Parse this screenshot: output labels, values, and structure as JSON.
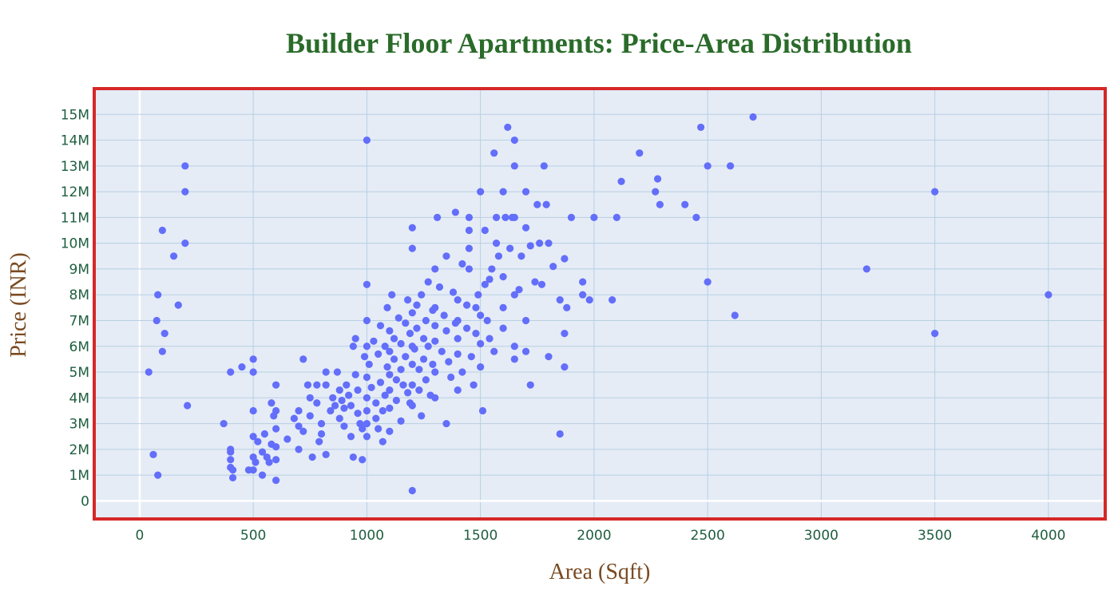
{
  "colors": {
    "title": "#2a6b2a",
    "axis_title": "#7a4a22",
    "tick": "#1f5f3f",
    "plot_bg": "#e5ecf6",
    "grid": "#b9cfe2",
    "zero_line": "#ffffff",
    "frame": "#d62728",
    "marker": "#636efa"
  },
  "chart_data": {
    "type": "scatter",
    "title": "Builder Floor Apartments: Price-Area Distribution",
    "xlabel": "Area (Sqft)",
    "ylabel": "Price (INR)",
    "xlim": [
      -200,
      4250
    ],
    "ylim": [
      -700000,
      16000000
    ],
    "x_ticks": [
      0,
      500,
      1000,
      1500,
      2000,
      2500,
      3000,
      3500,
      4000
    ],
    "x_tick_labels": [
      "0",
      "500",
      "1000",
      "1500",
      "2000",
      "2500",
      "3000",
      "3500",
      "4000"
    ],
    "y_ticks": [
      0,
      1000000,
      2000000,
      3000000,
      4000000,
      5000000,
      6000000,
      7000000,
      8000000,
      9000000,
      10000000,
      11000000,
      12000000,
      13000000,
      14000000,
      15000000
    ],
    "y_tick_labels": [
      "0",
      "1M",
      "2M",
      "3M",
      "4M",
      "5M",
      "6M",
      "7M",
      "8M",
      "9M",
      "10M",
      "11M",
      "12M",
      "13M",
      "14M",
      "15M"
    ],
    "grid": true,
    "points": [
      [
        40,
        5000000
      ],
      [
        60,
        1800000
      ],
      [
        75,
        7000000
      ],
      [
        80,
        8000000
      ],
      [
        80,
        1000000
      ],
      [
        100,
        5800000
      ],
      [
        100,
        10500000
      ],
      [
        110,
        6500000
      ],
      [
        150,
        9500000
      ],
      [
        170,
        7600000
      ],
      [
        200,
        12000000
      ],
      [
        200,
        13000000
      ],
      [
        200,
        10000000
      ],
      [
        210,
        3700000
      ],
      [
        370,
        3000000
      ],
      [
        400,
        5000000
      ],
      [
        400,
        2000000
      ],
      [
        400,
        1900000
      ],
      [
        400,
        1600000
      ],
      [
        400,
        1300000
      ],
      [
        410,
        1200000
      ],
      [
        410,
        900000
      ],
      [
        450,
        5200000
      ],
      [
        480,
        1200000
      ],
      [
        500,
        5500000
      ],
      [
        500,
        5000000
      ],
      [
        500,
        3500000
      ],
      [
        500,
        2500000
      ],
      [
        500,
        1700000
      ],
      [
        500,
        1200000
      ],
      [
        510,
        1500000
      ],
      [
        520,
        2300000
      ],
      [
        540,
        1900000
      ],
      [
        540,
        1000000
      ],
      [
        550,
        2600000
      ],
      [
        560,
        1700000
      ],
      [
        570,
        1500000
      ],
      [
        580,
        3800000
      ],
      [
        580,
        2200000
      ],
      [
        590,
        3300000
      ],
      [
        600,
        4500000
      ],
      [
        600,
        3500000
      ],
      [
        600,
        2800000
      ],
      [
        600,
        2100000
      ],
      [
        600,
        1600000
      ],
      [
        600,
        800000
      ],
      [
        650,
        2400000
      ],
      [
        680,
        3200000
      ],
      [
        700,
        3500000
      ],
      [
        700,
        2900000
      ],
      [
        700,
        2000000
      ],
      [
        720,
        5500000
      ],
      [
        720,
        2700000
      ],
      [
        740,
        4500000
      ],
      [
        750,
        4000000
      ],
      [
        750,
        3300000
      ],
      [
        760,
        1700000
      ],
      [
        780,
        4500000
      ],
      [
        780,
        3800000
      ],
      [
        790,
        2300000
      ],
      [
        800,
        3000000
      ],
      [
        800,
        2600000
      ],
      [
        820,
        5000000
      ],
      [
        820,
        4500000
      ],
      [
        820,
        1800000
      ],
      [
        840,
        3500000
      ],
      [
        850,
        4000000
      ],
      [
        860,
        3700000
      ],
      [
        870,
        5000000
      ],
      [
        880,
        4300000
      ],
      [
        880,
        3200000
      ],
      [
        890,
        3900000
      ],
      [
        900,
        3600000
      ],
      [
        900,
        2900000
      ],
      [
        910,
        4500000
      ],
      [
        920,
        4100000
      ],
      [
        930,
        3700000
      ],
      [
        930,
        2500000
      ],
      [
        940,
        6000000
      ],
      [
        940,
        1700000
      ],
      [
        950,
        6300000
      ],
      [
        950,
        4900000
      ],
      [
        960,
        4300000
      ],
      [
        960,
        3400000
      ],
      [
        970,
        3000000
      ],
      [
        980,
        2800000
      ],
      [
        980,
        1600000
      ],
      [
        990,
        5600000
      ],
      [
        1000,
        7000000
      ],
      [
        1000,
        6000000
      ],
      [
        1000,
        4800000
      ],
      [
        1000,
        4000000
      ],
      [
        1000,
        3500000
      ],
      [
        1000,
        3000000
      ],
      [
        1000,
        8400000
      ],
      [
        1000,
        14000000
      ],
      [
        1000,
        2500000
      ],
      [
        1010,
        5300000
      ],
      [
        1020,
        4400000
      ],
      [
        1030,
        6200000
      ],
      [
        1040,
        3800000
      ],
      [
        1040,
        3200000
      ],
      [
        1050,
        5700000
      ],
      [
        1050,
        2800000
      ],
      [
        1060,
        6800000
      ],
      [
        1060,
        4600000
      ],
      [
        1070,
        3500000
      ],
      [
        1070,
        2300000
      ],
      [
        1080,
        6000000
      ],
      [
        1080,
        4100000
      ],
      [
        1090,
        7500000
      ],
      [
        1090,
        5200000
      ],
      [
        1100,
        6600000
      ],
      [
        1100,
        5800000
      ],
      [
        1100,
        4900000
      ],
      [
        1100,
        4300000
      ],
      [
        1100,
        3600000
      ],
      [
        1100,
        2700000
      ],
      [
        1110,
        8000000
      ],
      [
        1120,
        6300000
      ],
      [
        1120,
        5500000
      ],
      [
        1130,
        4700000
      ],
      [
        1130,
        3900000
      ],
      [
        1140,
        7100000
      ],
      [
        1150,
        6100000
      ],
      [
        1150,
        5100000
      ],
      [
        1150,
        3100000
      ],
      [
        1160,
        4500000
      ],
      [
        1170,
        6900000
      ],
      [
        1170,
        5600000
      ],
      [
        1180,
        7800000
      ],
      [
        1180,
        4200000
      ],
      [
        1190,
        6500000
      ],
      [
        1190,
        3800000
      ],
      [
        1200,
        10600000
      ],
      [
        1200,
        9800000
      ],
      [
        1200,
        7300000
      ],
      [
        1200,
        6000000
      ],
      [
        1200,
        5300000
      ],
      [
        1200,
        4500000
      ],
      [
        1200,
        3700000
      ],
      [
        1200,
        400000
      ],
      [
        1210,
        5900000
      ],
      [
        1220,
        7600000
      ],
      [
        1220,
        6700000
      ],
      [
        1230,
        5100000
      ],
      [
        1230,
        4300000
      ],
      [
        1240,
        8000000
      ],
      [
        1240,
        3300000
      ],
      [
        1250,
        6300000
      ],
      [
        1250,
        5500000
      ],
      [
        1260,
        7000000
      ],
      [
        1260,
        4700000
      ],
      [
        1270,
        8500000
      ],
      [
        1270,
        6000000
      ],
      [
        1280,
        4100000
      ],
      [
        1290,
        7400000
      ],
      [
        1290,
        5300000
      ],
      [
        1300,
        9000000
      ],
      [
        1300,
        7500000
      ],
      [
        1300,
        6800000
      ],
      [
        1300,
        6200000
      ],
      [
        1300,
        5000000
      ],
      [
        1300,
        4000000
      ],
      [
        1310,
        11000000
      ],
      [
        1320,
        8300000
      ],
      [
        1330,
        5800000
      ],
      [
        1340,
        7200000
      ],
      [
        1350,
        9500000
      ],
      [
        1350,
        6600000
      ],
      [
        1350,
        3000000
      ],
      [
        1360,
        5400000
      ],
      [
        1370,
        4800000
      ],
      [
        1380,
        8100000
      ],
      [
        1390,
        11200000
      ],
      [
        1390,
        6900000
      ],
      [
        1400,
        7800000
      ],
      [
        1400,
        7000000
      ],
      [
        1400,
        6300000
      ],
      [
        1400,
        5700000
      ],
      [
        1400,
        4300000
      ],
      [
        1420,
        9200000
      ],
      [
        1420,
        5000000
      ],
      [
        1440,
        7600000
      ],
      [
        1440,
        6700000
      ],
      [
        1450,
        11000000
      ],
      [
        1450,
        10500000
      ],
      [
        1450,
        9800000
      ],
      [
        1450,
        9000000
      ],
      [
        1460,
        5600000
      ],
      [
        1470,
        4500000
      ],
      [
        1480,
        7500000
      ],
      [
        1480,
        6500000
      ],
      [
        1490,
        8000000
      ],
      [
        1500,
        12000000
      ],
      [
        1500,
        7200000
      ],
      [
        1500,
        6100000
      ],
      [
        1500,
        5200000
      ],
      [
        1510,
        3500000
      ],
      [
        1520,
        10500000
      ],
      [
        1520,
        8400000
      ],
      [
        1530,
        7000000
      ],
      [
        1540,
        8600000
      ],
      [
        1540,
        6300000
      ],
      [
        1550,
        9000000
      ],
      [
        1560,
        13500000
      ],
      [
        1560,
        5800000
      ],
      [
        1570,
        11000000
      ],
      [
        1570,
        10000000
      ],
      [
        1580,
        9500000
      ],
      [
        1600,
        12000000
      ],
      [
        1600,
        8700000
      ],
      [
        1600,
        7500000
      ],
      [
        1600,
        6700000
      ],
      [
        1610,
        11000000
      ],
      [
        1620,
        14500000
      ],
      [
        1630,
        9800000
      ],
      [
        1640,
        11000000
      ],
      [
        1650,
        14000000
      ],
      [
        1650,
        13000000
      ],
      [
        1650,
        11000000
      ],
      [
        1650,
        8000000
      ],
      [
        1650,
        6000000
      ],
      [
        1650,
        5500000
      ],
      [
        1670,
        8200000
      ],
      [
        1680,
        9500000
      ],
      [
        1700,
        12000000
      ],
      [
        1700,
        10600000
      ],
      [
        1700,
        7000000
      ],
      [
        1700,
        5800000
      ],
      [
        1720,
        9900000
      ],
      [
        1720,
        4500000
      ],
      [
        1740,
        8500000
      ],
      [
        1750,
        11500000
      ],
      [
        1760,
        10000000
      ],
      [
        1770,
        8400000
      ],
      [
        1780,
        13000000
      ],
      [
        1790,
        11500000
      ],
      [
        1800,
        10000000
      ],
      [
        1800,
        5600000
      ],
      [
        1820,
        9100000
      ],
      [
        1850,
        7800000
      ],
      [
        1850,
        2600000
      ],
      [
        1870,
        9400000
      ],
      [
        1870,
        6500000
      ],
      [
        1870,
        5200000
      ],
      [
        1880,
        7500000
      ],
      [
        1900,
        11000000
      ],
      [
        1950,
        8500000
      ],
      [
        1950,
        8000000
      ],
      [
        1980,
        7800000
      ],
      [
        2000,
        11000000
      ],
      [
        2080,
        7800000
      ],
      [
        2100,
        11000000
      ],
      [
        2120,
        12400000
      ],
      [
        2200,
        13500000
      ],
      [
        2270,
        12000000
      ],
      [
        2280,
        12500000
      ],
      [
        2290,
        11500000
      ],
      [
        2400,
        11500000
      ],
      [
        2450,
        11000000
      ],
      [
        2470,
        14500000
      ],
      [
        2500,
        13000000
      ],
      [
        2500,
        8500000
      ],
      [
        2600,
        13000000
      ],
      [
        2620,
        7200000
      ],
      [
        2700,
        14900000
      ],
      [
        3200,
        9000000
      ],
      [
        3500,
        12000000
      ],
      [
        3500,
        6500000
      ],
      [
        4000,
        8000000
      ]
    ]
  }
}
